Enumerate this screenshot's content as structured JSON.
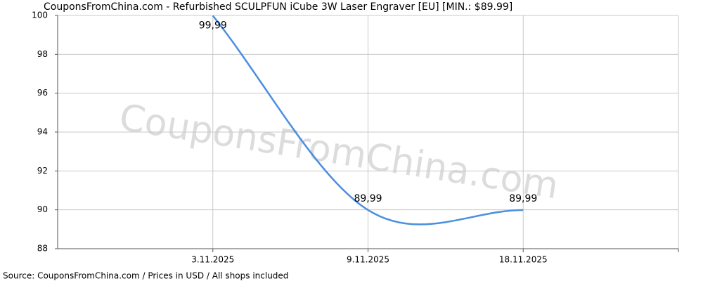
{
  "chart_data": {
    "type": "line",
    "title": "CouponsFromChina.com - Refurbished SCULPFUN iCube 3W Laser Engraver [EU] [MIN.: $89.99]",
    "watermark": "CouponsFromChina.com",
    "footer": "Source: CouponsFromChina.com / Prices in USD / All shops included",
    "categories": [
      "3.11.2025",
      "9.11.2025",
      "18.11.2025"
    ],
    "series": [
      {
        "name": "Price",
        "color": "#4a8fe0",
        "values": [
          99.99,
          89.99,
          89.99
        ],
        "value_labels": [
          "99,99",
          "89,99",
          "89,99"
        ]
      }
    ],
    "ylim": [
      88,
      100
    ],
    "yticks": [
      88,
      90,
      92,
      94,
      96,
      98,
      100
    ],
    "grid": true
  }
}
